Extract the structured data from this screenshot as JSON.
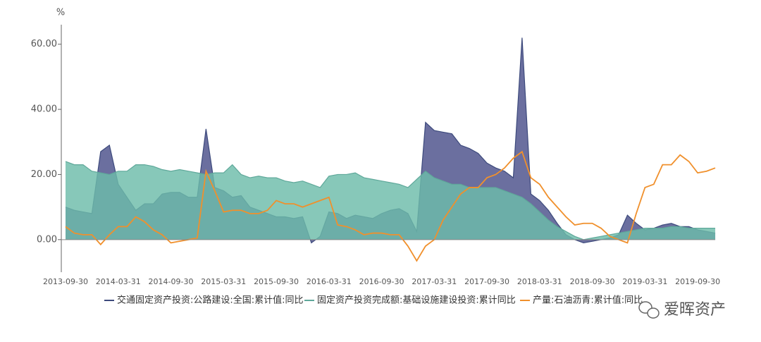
{
  "chart_data": {
    "type": "area",
    "y_unit": "%",
    "watermark": "爱晖资产",
    "categories": [
      "2013-09-30",
      null,
      null,
      null,
      null,
      null,
      "2014-03-31",
      null,
      null,
      null,
      null,
      null,
      "2014-09-30",
      null,
      null,
      null,
      null,
      null,
      "2015-03-31",
      null,
      null,
      null,
      null,
      null,
      "2015-09-30",
      null,
      null,
      null,
      null,
      null,
      "2016-03-31",
      null,
      null,
      null,
      null,
      null,
      "2016-09-30",
      null,
      null,
      null,
      null,
      null,
      "2017-03-31",
      null,
      null,
      null,
      null,
      null,
      "2017-09-30",
      null,
      null,
      null,
      null,
      null,
      "2018-03-31",
      null,
      null,
      null,
      null,
      null,
      "2018-09-30",
      null,
      null,
      null,
      null,
      null,
      "2019-03-31",
      null,
      null,
      null,
      null,
      null,
      "2019-09-30",
      null,
      null
    ],
    "series": [
      {
        "name": "交通固定资产投资:公路建设:全国:累计值:同比",
        "color": "#3d4a7c",
        "fill": "#6b6f9f",
        "filled": true,
        "values": [
          10,
          9,
          8.5,
          8,
          27,
          29,
          17,
          13,
          9,
          11,
          11,
          14,
          14.5,
          14.5,
          13,
          13,
          34,
          16,
          15,
          13,
          13.5,
          10,
          9,
          8,
          7,
          7,
          6.5,
          7,
          -1,
          1,
          8.5,
          8,
          6.5,
          7.5,
          7,
          6.5,
          8,
          9,
          9.5,
          8,
          2.5,
          36,
          33.5,
          33,
          32.5,
          29,
          28,
          26.5,
          23.5,
          22,
          21,
          19,
          62,
          14,
          12,
          9,
          5,
          1.5,
          0,
          -1,
          -0.5,
          0,
          0.5,
          1.5,
          7.5,
          5,
          3,
          3.5,
          4.5,
          5,
          4,
          4,
          3,
          2.5,
          2
        ]
      },
      {
        "name": "固定资产投资完成额:基础设施建设投资:累计同比",
        "color": "#5fa89a",
        "fill": "#6cbcaa",
        "filled": true,
        "values": [
          24,
          23,
          23,
          21,
          20.5,
          20,
          21,
          21,
          23,
          23,
          22.5,
          21.5,
          21,
          21.5,
          21,
          20.5,
          20,
          20.5,
          20.5,
          23,
          20,
          19,
          19.5,
          19,
          19,
          18,
          17.5,
          18,
          17,
          16,
          19.5,
          20,
          20,
          20.5,
          19,
          18.5,
          18,
          17.5,
          17,
          16,
          18.5,
          21,
          19,
          18,
          17,
          17,
          16,
          16,
          16,
          16,
          15,
          14,
          13,
          11,
          8.5,
          6,
          4,
          2.5,
          1,
          0,
          0.5,
          1,
          1.5,
          2,
          2.5,
          3,
          3.5,
          3.5,
          3.5,
          4,
          4,
          3.5,
          3.5,
          3.5,
          3.5
        ]
      },
      {
        "name": "产量:石油沥青:累计值:同比",
        "color": "#f0902c",
        "filled": false,
        "values": [
          4,
          2,
          1.5,
          1.5,
          -1.5,
          1.5,
          4,
          4,
          7,
          5.5,
          3,
          1.5,
          -1,
          -0.5,
          0,
          0.5,
          21,
          15,
          8.5,
          9,
          9,
          8,
          8,
          9,
          12,
          11,
          11,
          10,
          11,
          12,
          13,
          4.5,
          4,
          3,
          1.5,
          2,
          2,
          1.5,
          1.5,
          -2,
          -6.5,
          -2,
          0,
          6,
          10,
          14,
          16,
          16,
          19,
          20,
          22,
          25,
          27,
          19,
          17,
          13,
          10,
          7,
          4.5,
          5,
          5,
          3.5,
          1,
          0,
          -1,
          8,
          16,
          17,
          23,
          23,
          26,
          24,
          20.5,
          21,
          22
        ]
      }
    ],
    "ylim": [
      -10,
      66
    ],
    "yticks": [
      {
        "value": 0,
        "label": "0.00"
      },
      {
        "value": 20,
        "label": "20.00"
      },
      {
        "value": 40,
        "label": "40.00"
      },
      {
        "value": 60,
        "label": "60.00"
      }
    ],
    "legend": "bottom"
  }
}
